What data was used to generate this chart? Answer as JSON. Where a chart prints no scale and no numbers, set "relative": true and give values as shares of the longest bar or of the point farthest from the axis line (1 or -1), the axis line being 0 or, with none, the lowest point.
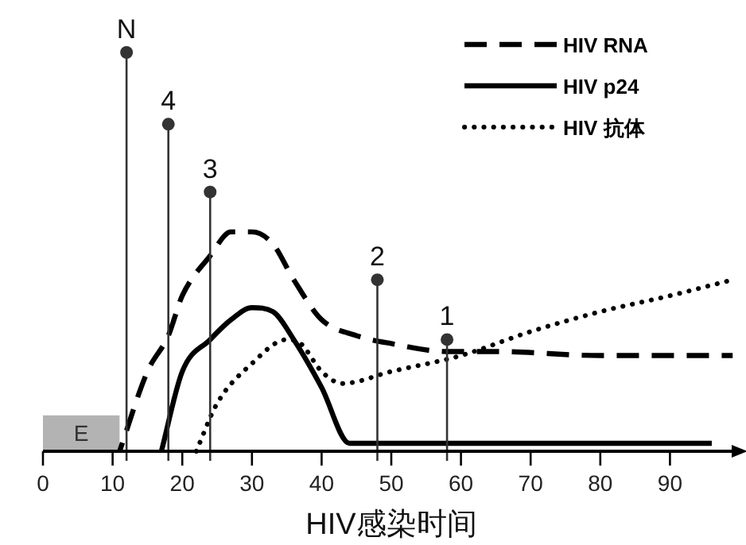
{
  "chart_data": {
    "type": "line",
    "xlabel": "HIV感染时间",
    "relative": true,
    "legend": "top right",
    "xlim": [
      0,
      100
    ],
    "xticks": [
      0,
      10,
      20,
      30,
      40,
      50,
      60,
      70,
      80,
      90
    ],
    "bands": [
      {
        "axis": "x",
        "from": 0,
        "to": 11,
        "label": "E",
        "color": "#b3b3b3"
      }
    ],
    "series": [
      {
        "name": "HIV RNA",
        "color": "#000000",
        "line_style": "dashed",
        "x": [
          11,
          15,
          18,
          20,
          24,
          27,
          30,
          33,
          36,
          40,
          45,
          50,
          58,
          65,
          80,
          99
        ],
        "values": [
          0,
          0.2,
          0.29,
          0.39,
          0.49,
          0.55,
          0.55,
          0.52,
          0.43,
          0.33,
          0.29,
          0.27,
          0.25,
          0.25,
          0.24,
          0.24
        ]
      },
      {
        "name": "HIV p24",
        "color": "#000000",
        "line_style": "solid",
        "x": [
          17,
          20,
          24,
          27,
          30,
          33,
          36,
          40,
          44,
          96
        ],
        "values": [
          0,
          0.2,
          0.28,
          0.33,
          0.36,
          0.35,
          0.28,
          0.16,
          0.02,
          0.02
        ]
      },
      {
        "name": "HIV 抗体",
        "color": "#000000",
        "line_style": "dotted",
        "x": [
          22,
          25,
          30,
          35,
          37,
          40,
          43,
          50,
          60,
          70,
          80,
          90,
          99
        ],
        "values": [
          0,
          0.12,
          0.22,
          0.28,
          0.27,
          0.2,
          0.17,
          0.2,
          0.24,
          0.3,
          0.35,
          0.39,
          0.43
        ]
      },
      {
        "type": "lollipop",
        "color": "#333333",
        "marker": "circle",
        "x": [
          12,
          18,
          24,
          48,
          58
        ],
        "values": [
          1,
          0.82,
          0.65,
          0.43,
          0.28
        ]
      }
    ],
    "annotations": [
      {
        "text": "N",
        "x": 12,
        "y": 1
      },
      {
        "text": "4",
        "x": 18,
        "y": 0.82
      },
      {
        "text": "3",
        "x": 24,
        "y": 0.65
      },
      {
        "text": "2",
        "x": 48,
        "y": 0.43
      },
      {
        "text": "1",
        "x": 58,
        "y": 0.28
      }
    ]
  }
}
